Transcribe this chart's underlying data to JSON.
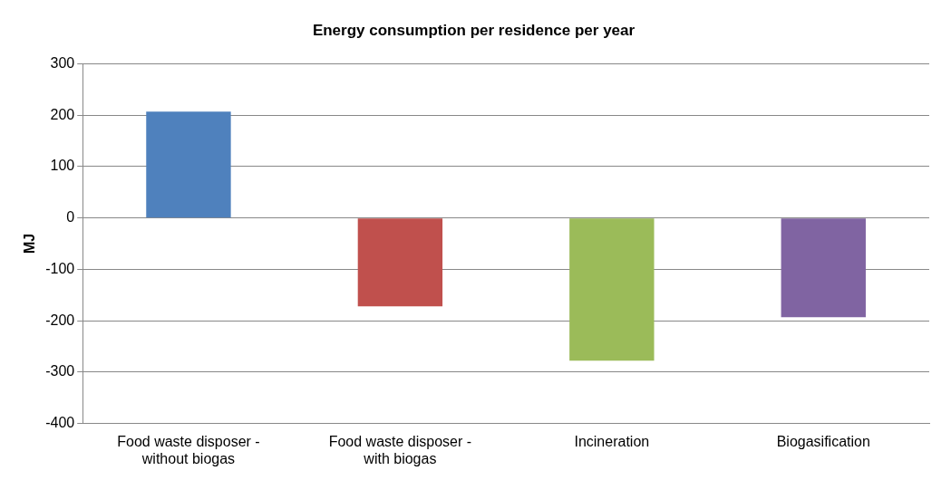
{
  "chart_data": {
    "type": "bar",
    "title": "Energy consumption per residence per year",
    "ylabel": "MJ",
    "categories": [
      "Food waste disposer - without biogas",
      "Food waste disposer - with biogas",
      "Incineration",
      "Biogasification"
    ],
    "values": [
      207,
      -172,
      -278,
      -193
    ],
    "colors": [
      "#4f81bd",
      "#c0504d",
      "#9bbb59",
      "#8064a2"
    ],
    "ylim": [
      -400,
      300
    ],
    "yticks": [
      -400,
      -300,
      -200,
      -100,
      0,
      100,
      200,
      300
    ],
    "grid": "y",
    "legend": false
  }
}
